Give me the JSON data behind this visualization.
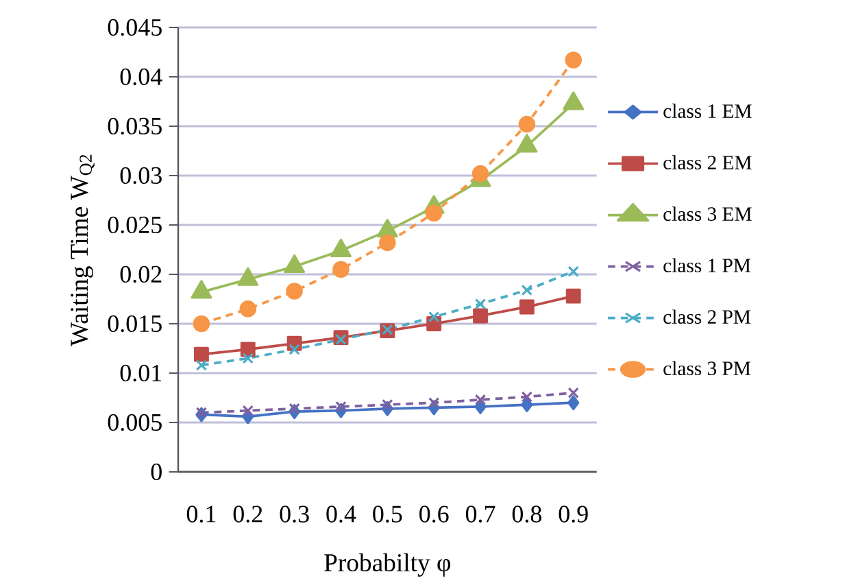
{
  "chart_data": {
    "type": "line",
    "xlabel": "Probabilty φ",
    "ylabel": "Waiting Time  W$_{Q2}$",
    "categories": [
      "0.1",
      "0.2",
      "0.3",
      "0.4",
      "0.5",
      "0.6",
      "0.7",
      "0.8",
      "0.9"
    ],
    "ylim": [
      0,
      0.045
    ],
    "yticks": [
      0,
      0.005,
      0.01,
      0.015,
      0.02,
      0.025,
      0.03,
      0.035,
      0.04,
      0.045
    ],
    "grid": "y",
    "legend": "right",
    "series": [
      {
        "name": "class 1 EM",
        "color": "#4472c4",
        "marker": "diamond",
        "line_style": "solid",
        "values": [
          0.0058,
          0.0056,
          0.0061,
          0.0062,
          0.0064,
          0.0065,
          0.0066,
          0.0068,
          0.007
        ]
      },
      {
        "name": "class 2 EM",
        "color": "#be4b48",
        "marker": "square",
        "line_style": "solid",
        "values": [
          0.0119,
          0.0124,
          0.013,
          0.0136,
          0.0143,
          0.015,
          0.0158,
          0.0167,
          0.0178
        ]
      },
      {
        "name": "class 3 EM",
        "color": "#9bbb59",
        "marker": "triangle",
        "line_style": "solid",
        "values": [
          0.0182,
          0.0195,
          0.0208,
          0.0224,
          0.0244,
          0.0268,
          0.0295,
          0.033,
          0.0373
        ]
      },
      {
        "name": "class 1 PM",
        "color": "#7f609f",
        "marker": "cross",
        "line_style": "dashed",
        "values": [
          0.006,
          0.0062,
          0.0064,
          0.0066,
          0.0068,
          0.007,
          0.0073,
          0.0076,
          0.008
        ]
      },
      {
        "name": "class 2 PM",
        "color": "#4bacc6",
        "marker": "cross",
        "line_style": "dashed",
        "values": [
          0.0108,
          0.0115,
          0.0124,
          0.0134,
          0.0144,
          0.0157,
          0.017,
          0.0184,
          0.0203
        ]
      },
      {
        "name": "class 3 PM",
        "color": "#f79646",
        "marker": "circle",
        "line_style": "dashed",
        "values": [
          0.015,
          0.0165,
          0.0183,
          0.0205,
          0.0232,
          0.0262,
          0.0302,
          0.0352,
          0.0417
        ]
      }
    ]
  }
}
